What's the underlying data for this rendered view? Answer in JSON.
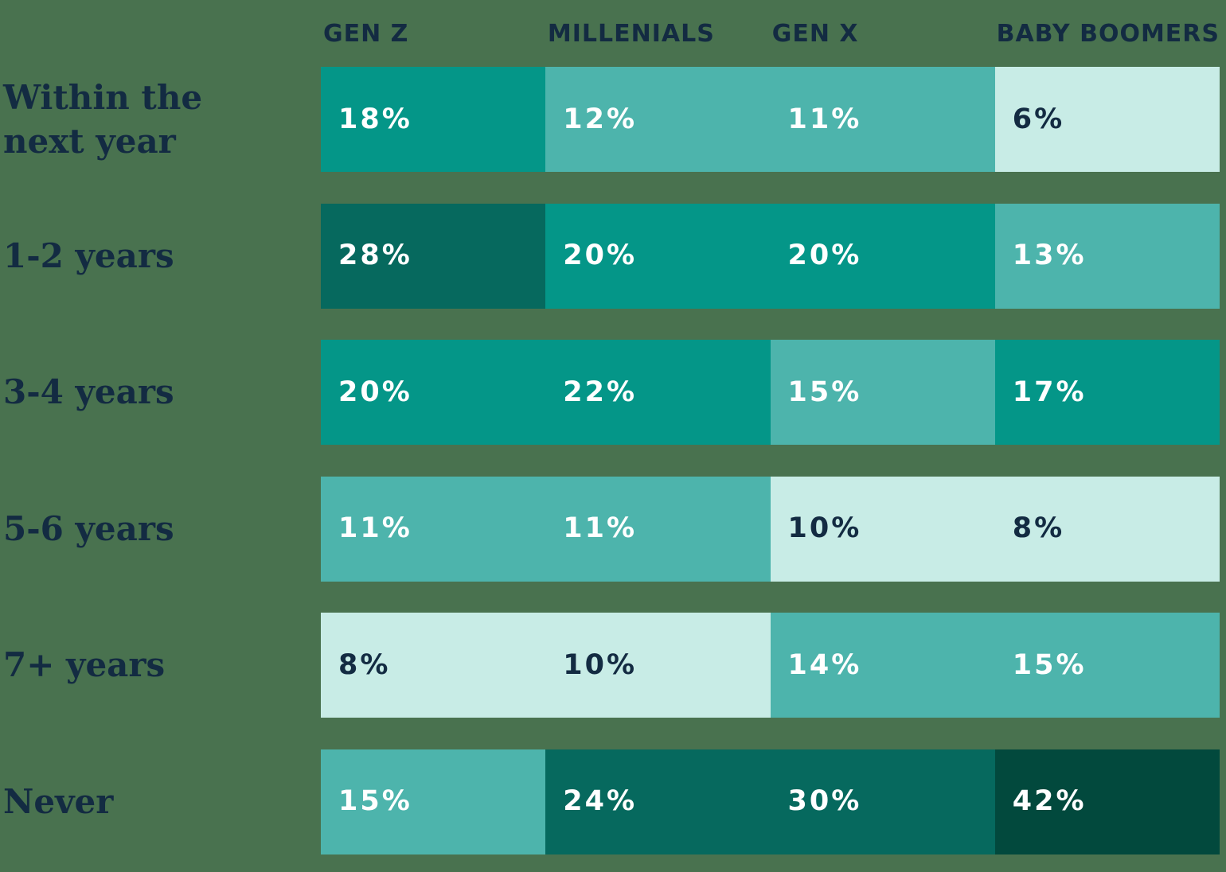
{
  "colors": {
    "page_background": "#49724f",
    "heading_text": "#132b42",
    "value_text_on_dark": "#ffffff",
    "value_text_on_light": "#132b42"
  },
  "palette": {
    "level1": "#c8ece6",
    "level2": "#4db4ac",
    "level3": "#049688",
    "level4": "#06695e",
    "level5": "#02493d"
  },
  "chart_data": {
    "type": "heatmap",
    "unit": "%",
    "legend": "none",
    "columns": [
      "GEN Z",
      "MILLENIALS",
      "GEN X",
      "BABY BOOMERS"
    ],
    "row_categories": [
      "Within the next year",
      "1-2 years",
      "3-4 years",
      "5-6 years",
      "7+ years",
      "Never"
    ],
    "rows": [
      {
        "label": "Within the next year",
        "values": [
          18,
          12,
          11,
          6
        ],
        "labels": [
          "18%",
          "12%",
          "11%",
          "6%"
        ],
        "levels": [
          3,
          2,
          2,
          1
        ]
      },
      {
        "label": "1-2 years",
        "values": [
          28,
          20,
          20,
          13
        ],
        "labels": [
          "28%",
          "20%",
          "20%",
          "13%"
        ],
        "levels": [
          4,
          3,
          3,
          2
        ]
      },
      {
        "label": "3-4 years",
        "values": [
          20,
          22,
          15,
          17
        ],
        "labels": [
          "20%",
          "22%",
          "15%",
          "17%"
        ],
        "levels": [
          3,
          3,
          2,
          3
        ]
      },
      {
        "label": "5-6 years",
        "values": [
          11,
          11,
          10,
          8
        ],
        "labels": [
          "11%",
          "11%",
          "10%",
          "8%"
        ],
        "levels": [
          2,
          2,
          1,
          1
        ]
      },
      {
        "label": "7+ years",
        "values": [
          8,
          10,
          14,
          15
        ],
        "labels": [
          "8%",
          "10%",
          "14%",
          "15%"
        ],
        "levels": [
          1,
          1,
          2,
          2
        ]
      },
      {
        "label": "Never",
        "values": [
          15,
          24,
          30,
          42
        ],
        "labels": [
          "15%",
          "24%",
          "30%",
          "42%"
        ],
        "levels": [
          2,
          4,
          4,
          5
        ]
      }
    ]
  }
}
